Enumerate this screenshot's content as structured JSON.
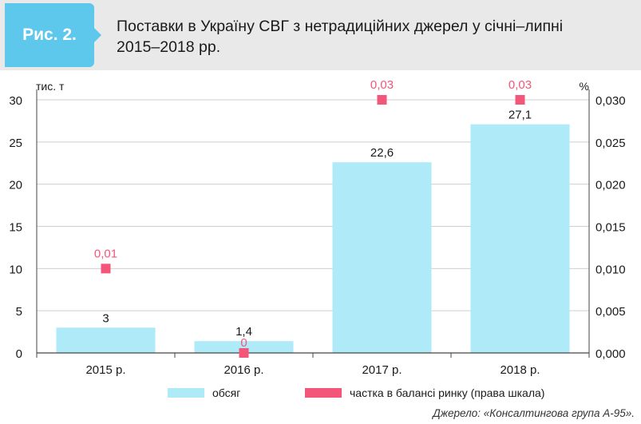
{
  "figure": {
    "label": "Рис. 2.",
    "title_line1": "Поставки в Україну СВГ з нетрадиційних джерел у січні–липні",
    "title_line2": "2015–2018 рр."
  },
  "colors": {
    "header_bg": "#e9e9e9",
    "badge": "#5ec8ec",
    "bar": "#aeeaf8",
    "marker": "#f4567a",
    "marker_label": "#f4567a"
  },
  "chart_data": {
    "type": "bar",
    "categories": [
      "2015 р.",
      "2016 р.",
      "2017 р.",
      "2018 р."
    ],
    "series": [
      {
        "name": "обсяг",
        "kind": "bar",
        "axis": "left",
        "values": [
          3,
          1.4,
          22.6,
          27.1
        ],
        "labels": [
          "3",
          "1,4",
          "22,6",
          "27,1"
        ]
      },
      {
        "name": "частка в балансі ринку (права шкала)",
        "kind": "marker",
        "axis": "right",
        "values": [
          0.01,
          0,
          0.03,
          0.03
        ],
        "labels": [
          "0,01",
          "0",
          "0,03",
          "0,03"
        ]
      }
    ],
    "y_left": {
      "unit": "тис. т",
      "ylim": [
        0,
        30
      ],
      "ticks": [
        0,
        5,
        10,
        15,
        20,
        25,
        30
      ],
      "tick_labels": [
        "0",
        "5",
        "10",
        "15",
        "20",
        "25",
        "30"
      ]
    },
    "y_right": {
      "unit": "%",
      "ylim": [
        0,
        0.03
      ],
      "ticks": [
        0,
        0.005,
        0.01,
        0.015,
        0.02,
        0.025,
        0.03
      ],
      "tick_labels": [
        "0,000",
        "0,005",
        "0,010",
        "0,015",
        "0,020",
        "0,025",
        "0,030"
      ]
    },
    "grid": true,
    "legend_position": "bottom"
  },
  "source": "Джерело: «Консалтингова група А-95»."
}
